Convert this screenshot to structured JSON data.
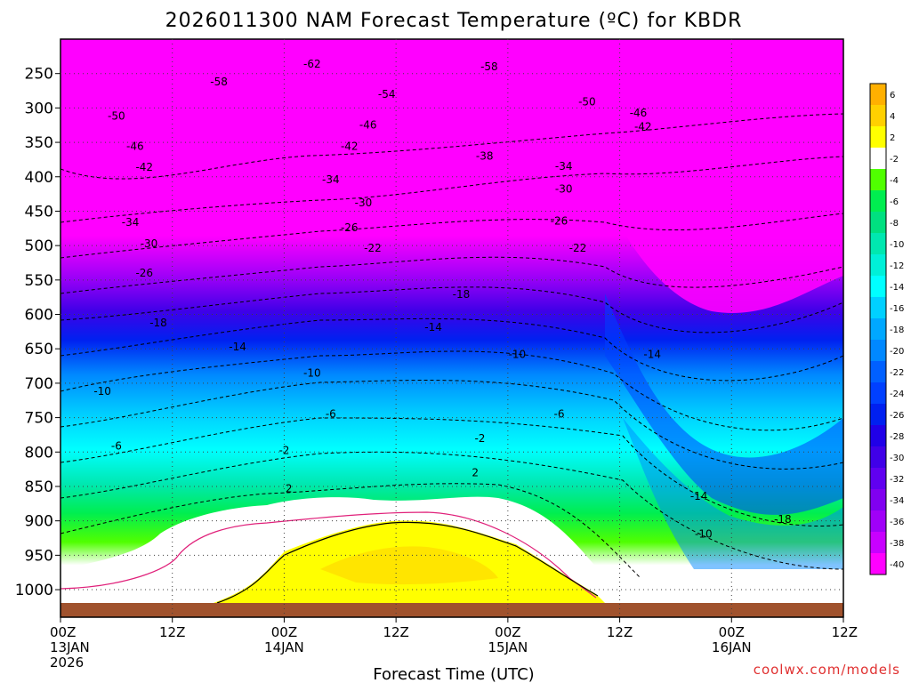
{
  "chart_data": {
    "type": "heatmap",
    "title": "2026011300 NAM Forecast Temperature (ºC) for KBDR",
    "xlabel": "Forecast Time (UTC)",
    "ylabel": "",
    "credit": "coolwx.com/models",
    "x_ticks": [
      {
        "hour": 0,
        "lines": [
          "00Z",
          "13JAN",
          "2026"
        ]
      },
      {
        "hour": 12,
        "lines": [
          "12Z"
        ]
      },
      {
        "hour": 24,
        "lines": [
          "00Z",
          "14JAN"
        ]
      },
      {
        "hour": 36,
        "lines": [
          "12Z"
        ]
      },
      {
        "hour": 48,
        "lines": [
          "00Z",
          "15JAN"
        ]
      },
      {
        "hour": 60,
        "lines": [
          "12Z"
        ]
      },
      {
        "hour": 72,
        "lines": [
          "00Z",
          "16JAN"
        ]
      },
      {
        "hour": 84,
        "lines": [
          "12Z"
        ]
      }
    ],
    "xlim": [
      0,
      84
    ],
    "y_ticks": [
      250,
      300,
      350,
      400,
      450,
      500,
      550,
      600,
      650,
      700,
      750,
      800,
      850,
      900,
      950,
      1000
    ],
    "ylim": [
      200,
      1040
    ],
    "colorbar": {
      "labels": [
        "6",
        "4",
        "2",
        "-2",
        "-4",
        "-6",
        "-8",
        "-10",
        "-12",
        "-14",
        "-16",
        "-18",
        "-20",
        "-22",
        "-24",
        "-26",
        "-28",
        "-30",
        "-32",
        "-34",
        "-36",
        "-38",
        "-40"
      ],
      "colors": [
        "#ffb000",
        "#ffd000",
        "#ffff00",
        "#ffffff",
        "#50ff00",
        "#00ee50",
        "#00e080",
        "#00e8b0",
        "#00f0d8",
        "#00ffff",
        "#00d0ff",
        "#00a8ff",
        "#0088ff",
        "#0060ff",
        "#0040ff",
        "#0020f0",
        "#2000e8",
        "#4000e8",
        "#6000f0",
        "#8000f0",
        "#a000f8",
        "#c800ff",
        "#ff00ff"
      ]
    },
    "contour_labels": [
      {
        "text": "-62",
        "hour": 27,
        "p": 236
      },
      {
        "text": "-58",
        "hour": 17,
        "p": 262
      },
      {
        "text": "-58",
        "hour": 46,
        "p": 240
      },
      {
        "text": "-54",
        "hour": 35,
        "p": 280
      },
      {
        "text": "-50",
        "hour": 6,
        "p": 312
      },
      {
        "text": "-50",
        "hour": 56.5,
        "p": 291
      },
      {
        "text": "-46",
        "hour": 8,
        "p": 356
      },
      {
        "text": "-46",
        "hour": 33,
        "p": 325
      },
      {
        "text": "-46",
        "hour": 62,
        "p": 307
      },
      {
        "text": "-42",
        "hour": 9,
        "p": 386
      },
      {
        "text": "-42",
        "hour": 31,
        "p": 356
      },
      {
        "text": "-42",
        "hour": 62.5,
        "p": 327
      },
      {
        "text": "-38",
        "hour": 45.5,
        "p": 370
      },
      {
        "text": "-34",
        "hour": 29,
        "p": 404
      },
      {
        "text": "-34",
        "hour": 54,
        "p": 385
      },
      {
        "text": "-34",
        "hour": 7.5,
        "p": 466
      },
      {
        "text": "-30",
        "hour": 32.5,
        "p": 438
      },
      {
        "text": "-30",
        "hour": 54,
        "p": 418
      },
      {
        "text": "-30",
        "hour": 9.5,
        "p": 497
      },
      {
        "text": "-26",
        "hour": 31,
        "p": 474
      },
      {
        "text": "-26",
        "hour": 53.5,
        "p": 464
      },
      {
        "text": "-26",
        "hour": 9,
        "p": 540
      },
      {
        "text": "-22",
        "hour": 33.5,
        "p": 504
      },
      {
        "text": "-22",
        "hour": 55.5,
        "p": 504
      },
      {
        "text": "-18",
        "hour": 43,
        "p": 571
      },
      {
        "text": "-18",
        "hour": 10.5,
        "p": 612
      },
      {
        "text": "-18",
        "hour": 77.5,
        "p": 898
      },
      {
        "text": "-14",
        "hour": 40,
        "p": 619
      },
      {
        "text": "-14",
        "hour": 19,
        "p": 647
      },
      {
        "text": "-14",
        "hour": 63.5,
        "p": 658
      },
      {
        "text": "-14",
        "hour": 68.5,
        "p": 864
      },
      {
        "text": "-10",
        "hour": 49,
        "p": 658
      },
      {
        "text": "-10",
        "hour": 27,
        "p": 685
      },
      {
        "text": "-10",
        "hour": 4.5,
        "p": 712
      },
      {
        "text": "-10",
        "hour": 69,
        "p": 919
      },
      {
        "text": "-6",
        "hour": 29,
        "p": 745
      },
      {
        "text": "-6",
        "hour": 53.5,
        "p": 745
      },
      {
        "text": "-6",
        "hour": 6,
        "p": 791
      },
      {
        "text": "-2",
        "hour": 45,
        "p": 780
      },
      {
        "text": "-2",
        "hour": 24,
        "p": 798
      },
      {
        "text": "2",
        "hour": 24.5,
        "p": 853
      },
      {
        "text": "2",
        "hour": 44.5,
        "p": 830
      }
    ]
  }
}
